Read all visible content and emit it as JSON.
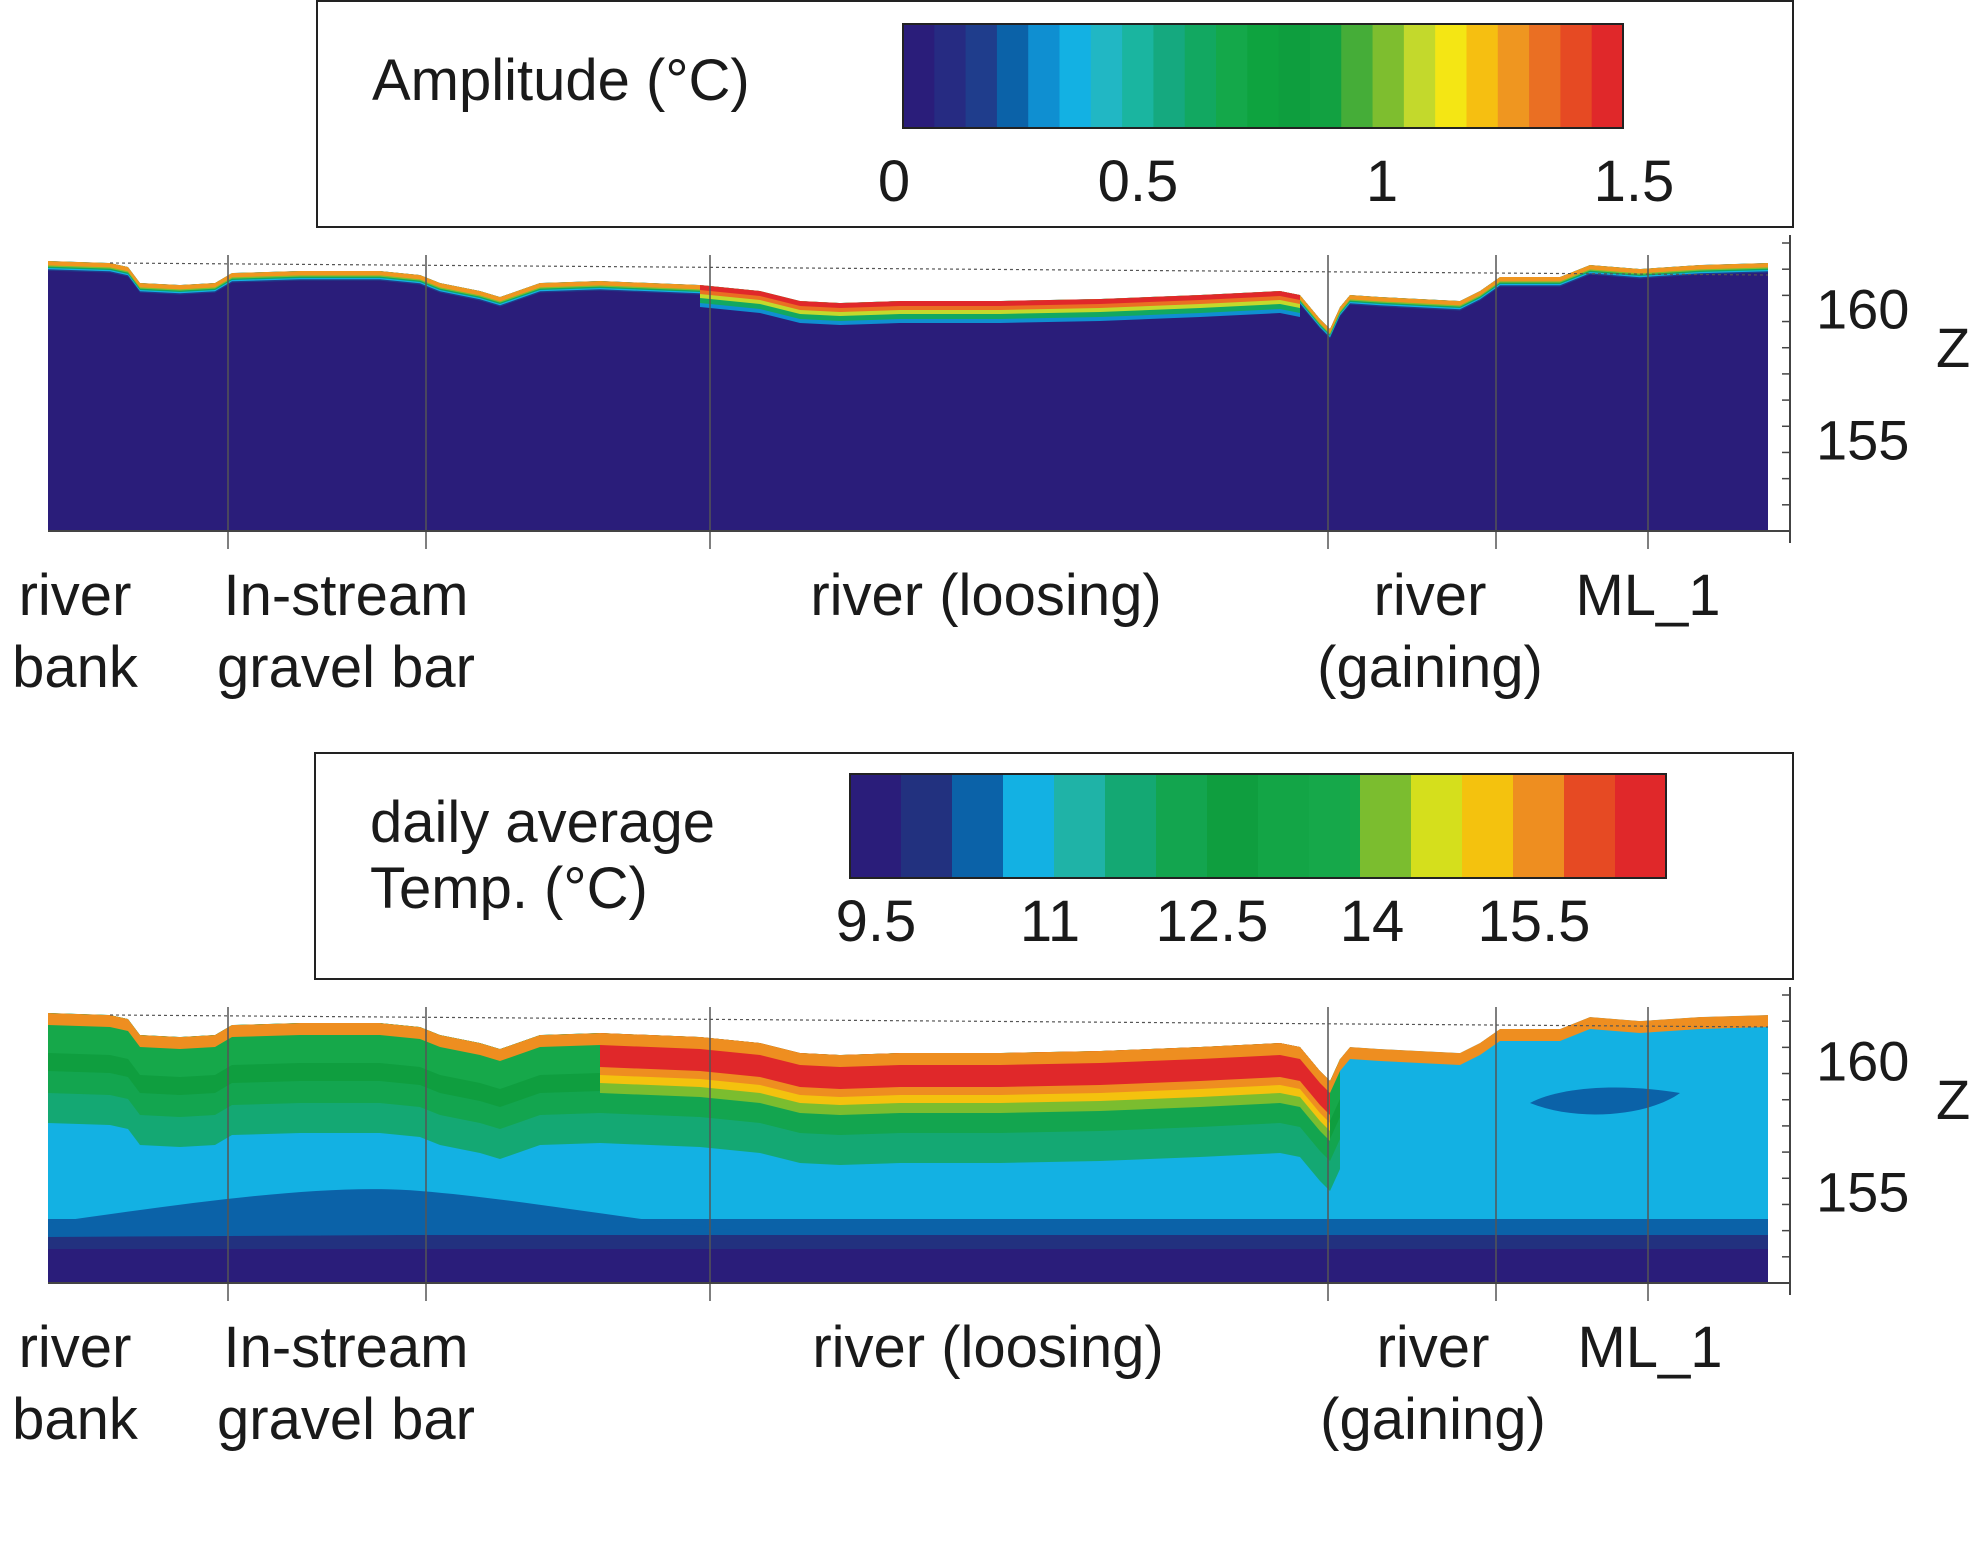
{
  "chart_data": [
    {
      "type": "heatmap",
      "title": "",
      "legend": {
        "title": "Amplitude (°C)",
        "min": 0,
        "max": 1.5,
        "ticks": [
          "0",
          "0.5",
          "1",
          "1.5"
        ],
        "colors": [
          "#2a1d7a",
          "#262b82",
          "#1f3d8c",
          "#0b62a8",
          "#0f8fd1",
          "#13b1e3",
          "#21b7c4",
          "#1ab5a0",
          "#15a97f",
          "#12a861",
          "#14a84a",
          "#0ea33f",
          "#0e9e3e",
          "#12a141",
          "#45ad38",
          "#7ebe2f",
          "#c3d92c",
          "#f4e614",
          "#f6bf11",
          "#ef9620",
          "#ea6f23",
          "#e64a23",
          "#e0282a"
        ]
      },
      "ylabel": "Z",
      "yticks": [
        "160",
        "155"
      ],
      "ylim": [
        151.5,
        162.5
      ],
      "site_labels": [
        {
          "text": "river\nbank"
        },
        {
          "text": "In-stream\ngravel bar"
        },
        {
          "text": "river (loosing)"
        },
        {
          "text": "river\n(gaining)"
        },
        {
          "text": "ML_1"
        }
      ]
    },
    {
      "type": "heatmap",
      "title": "",
      "legend": {
        "title": "daily average\nTemp. (°C)",
        "min": 9.5,
        "max": 17,
        "ticks": [
          "9.5",
          "11",
          "12.5",
          "14",
          "15.5"
        ],
        "colors": [
          "#2a1d7a",
          "#22317f",
          "#0b62a8",
          "#13b1e3",
          "#1fb3a7",
          "#14a873",
          "#13a54f",
          "#0f9e3f",
          "#13a546",
          "#16a84a",
          "#7bbd2f",
          "#d5df1c",
          "#f4c20e",
          "#ee8e20",
          "#e64a23",
          "#e0282a"
        ]
      },
      "ylabel": "Z",
      "yticks": [
        "160",
        "155"
      ],
      "ylim": [
        151.5,
        162.5
      ],
      "site_labels": [
        {
          "text": "river\nbank"
        },
        {
          "text": "In-stream\ngravel bar"
        },
        {
          "text": "river (loosing)"
        },
        {
          "text": "river\n(gaining)"
        },
        {
          "text": "ML_1"
        }
      ]
    }
  ]
}
